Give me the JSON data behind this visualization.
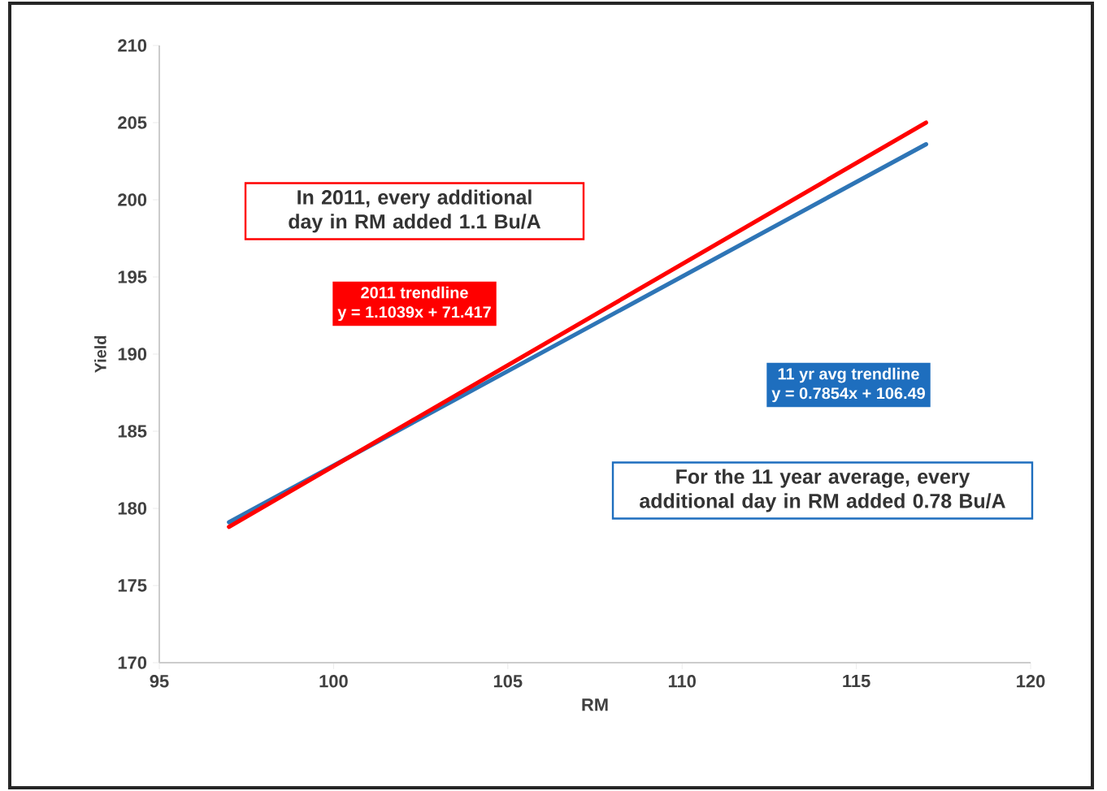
{
  "chart_data": {
    "type": "line",
    "xlabel": "RM",
    "ylabel": "Yield",
    "xlim": [
      95,
      120
    ],
    "xticks": [
      95,
      100,
      105,
      110,
      115,
      120
    ],
    "ylim": [
      170,
      210
    ],
    "yticks": [
      170,
      175,
      180,
      185,
      190,
      195,
      200,
      205,
      210
    ],
    "x": [
      97,
      117
    ],
    "series": [
      {
        "color": "#2e75b6",
        "values": [
          179.1,
          203.6
        ]
      },
      {
        "color": "#ff0000",
        "values": [
          178.8,
          205.0
        ]
      }
    ],
    "annotations": [
      "In 2011, every additional day in RM added 1.1 Bu/A",
      "2011 trendline",
      "y = 1.1039x + 71.417",
      "11 yr avg trendline",
      "y = 0.7854x + 106.49",
      "For the 11 year average, every additional day in RM added 0.78 Bu/A"
    ],
    "marker": "none"
  }
}
